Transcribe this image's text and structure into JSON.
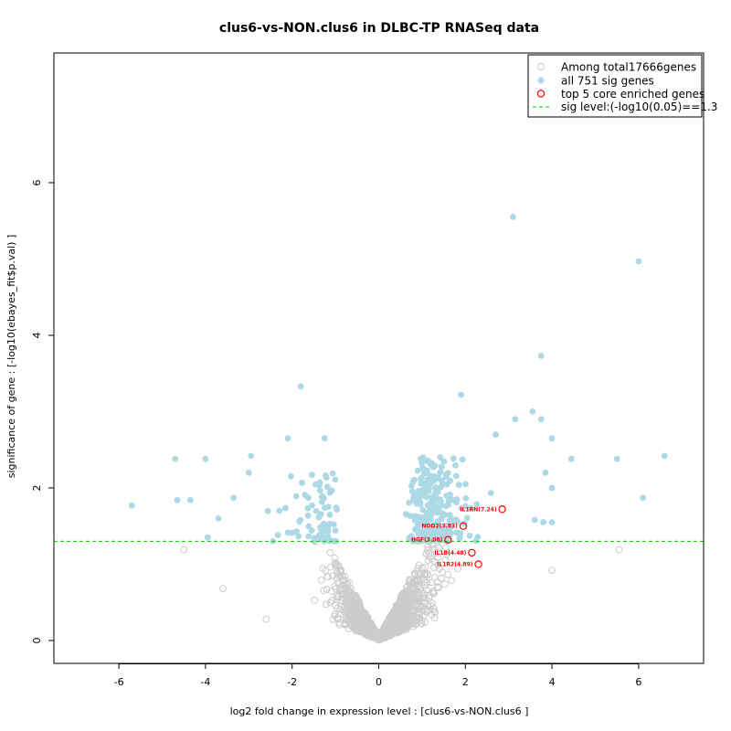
{
  "chart_data": {
    "type": "scatter",
    "title": "clus6-vs-NON.clus6 in DLBC-TP RNASeq data",
    "xlabel": "log2 fold change in expression level : [clus6-vs-NON.clus6 ]",
    "ylabel": "significance of gene : [-log10(ebayes_fit$p.val) ]",
    "xlim": [
      -7.5,
      7.5
    ],
    "ylim": [
      -0.3,
      7.7
    ],
    "x_ticks": [
      -6,
      -4,
      -2,
      0,
      2,
      4,
      6
    ],
    "y_ticks": [
      0,
      2,
      4,
      6
    ],
    "sig_level": 1.3,
    "colors": {
      "background_genes": "#cccccc",
      "sig_genes": "#add8e6",
      "core_genes": "#ff0000",
      "sig_line": "#00cc00"
    },
    "legend": {
      "position": "top-right",
      "entries": [
        "Among total17666genes",
        "all 751 sig genes",
        "top 5 core enriched genes",
        "sig level:(-log10(0.05)==1.3"
      ]
    },
    "core_genes": [
      {
        "label": "IL1RN(7.24)",
        "x": 2.85,
        "y": 1.72
      },
      {
        "label": "NOD2(3.83)",
        "x": 1.95,
        "y": 1.5
      },
      {
        "label": "HGF(3.08)",
        "x": 1.6,
        "y": 1.32
      },
      {
        "label": "IL1B(4.48)",
        "x": 2.15,
        "y": 1.15
      },
      {
        "label": "IL1R2(4.89)",
        "x": 2.3,
        "y": 1.0
      }
    ],
    "notable_sig_points": [
      {
        "x": 3.1,
        "y": 5.55
      },
      {
        "x": 6.0,
        "y": 4.97
      },
      {
        "x": 3.75,
        "y": 3.73
      },
      {
        "x": -1.8,
        "y": 3.33
      },
      {
        "x": 1.9,
        "y": 3.22
      },
      {
        "x": 6.6,
        "y": 2.42
      },
      {
        "x": 6.1,
        "y": 1.87
      },
      {
        "x": 5.5,
        "y": 2.38
      },
      {
        "x": -5.7,
        "y": 1.77
      },
      {
        "x": -4.7,
        "y": 2.38
      },
      {
        "x": -4.0,
        "y": 2.38
      },
      {
        "x": -2.95,
        "y": 2.42
      },
      {
        "x": -2.1,
        "y": 2.65
      },
      {
        "x": -1.25,
        "y": 2.65
      },
      {
        "x": -4.65,
        "y": 1.84
      },
      {
        "x": -4.35,
        "y": 1.84
      },
      {
        "x": 4.0,
        "y": 2.65
      },
      {
        "x": 3.55,
        "y": 3.0
      },
      {
        "x": 4.45,
        "y": 2.38
      },
      {
        "x": 3.75,
        "y": 2.9
      },
      {
        "x": 3.85,
        "y": 2.2
      },
      {
        "x": 4.0,
        "y": 2.0
      },
      {
        "x": 3.6,
        "y": 1.58
      },
      {
        "x": 3.8,
        "y": 1.55
      },
      {
        "x": 4.0,
        "y": 1.55
      },
      {
        "x": -3.95,
        "y": 1.35
      },
      {
        "x": -3.7,
        "y": 1.6
      },
      {
        "x": -3.35,
        "y": 1.87
      },
      {
        "x": -3.0,
        "y": 2.2
      },
      {
        "x": 3.15,
        "y": 2.9
      },
      {
        "x": 2.7,
        "y": 2.7
      }
    ],
    "notable_nonsig_points": [
      {
        "x": -4.5,
        "y": 1.19
      },
      {
        "x": 5.55,
        "y": 1.19
      },
      {
        "x": 4.0,
        "y": 0.92
      },
      {
        "x": -3.6,
        "y": 0.68
      },
      {
        "x": -2.6,
        "y": 0.28
      }
    ]
  }
}
